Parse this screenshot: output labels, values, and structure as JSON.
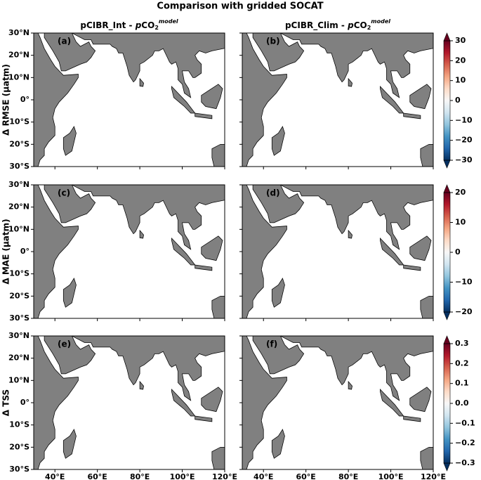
{
  "title": "Comparison with gridded SOCAT",
  "column_titles": [
    {
      "prefix": "pCIBR_Int - ",
      "italic": "p",
      "gas": "CO",
      "sub": "2",
      "sup": "model"
    },
    {
      "prefix": "pCIBR_Clim - ",
      "italic": "p",
      "gas": "CO",
      "sub": "2",
      "sup": "model"
    }
  ],
  "xlim": [
    30,
    120
  ],
  "ylim": [
    -30,
    30
  ],
  "xticks": [
    {
      "value": 40,
      "label": "40°E"
    },
    {
      "value": 60,
      "label": "60°E"
    },
    {
      "value": 80,
      "label": "80°E"
    },
    {
      "value": 100,
      "label": "100°E"
    },
    {
      "value": 120,
      "label": "120°E"
    }
  ],
  "yticks": [
    {
      "value": 30,
      "label": "30°N"
    },
    {
      "value": 20,
      "label": "20°N"
    },
    {
      "value": 10,
      "label": "10°N"
    },
    {
      "value": 0,
      "label": "0°"
    },
    {
      "value": -10,
      "label": "10°S"
    },
    {
      "value": -20,
      "label": "20°S"
    },
    {
      "value": -30,
      "label": "30°S"
    }
  ],
  "rows": [
    {
      "ylabel": "Δ RMSE (μatm)",
      "panels": [
        "(a)",
        "(b)"
      ],
      "clim": [
        -30,
        30
      ],
      "cticks": [
        30,
        20,
        10,
        0,
        {
          "value": -10,
          "label": "−10"
        },
        {
          "value": -20,
          "label": "−20"
        },
        {
          "value": -30,
          "label": "−30"
        }
      ]
    },
    {
      "ylabel": "Δ MAE (μatm)",
      "panels": [
        "(c)",
        "(d)"
      ],
      "clim": [
        -20,
        20
      ],
      "cticks": [
        20,
        10,
        0,
        {
          "value": -10,
          "label": "−10"
        },
        {
          "value": -20,
          "label": "−20"
        }
      ]
    },
    {
      "ylabel": "Δ TSS",
      "panels": [
        "(e)",
        "(f)"
      ],
      "clim": [
        -0.3,
        0.3
      ],
      "cticks": [
        0.3,
        0.2,
        0.1,
        {
          "value": 0,
          "label": "0.0"
        },
        {
          "value": -0.1,
          "label": "−0.1"
        },
        {
          "value": -0.2,
          "label": "−0.2"
        },
        {
          "value": -0.3,
          "label": "−0.3"
        }
      ]
    }
  ]
}
